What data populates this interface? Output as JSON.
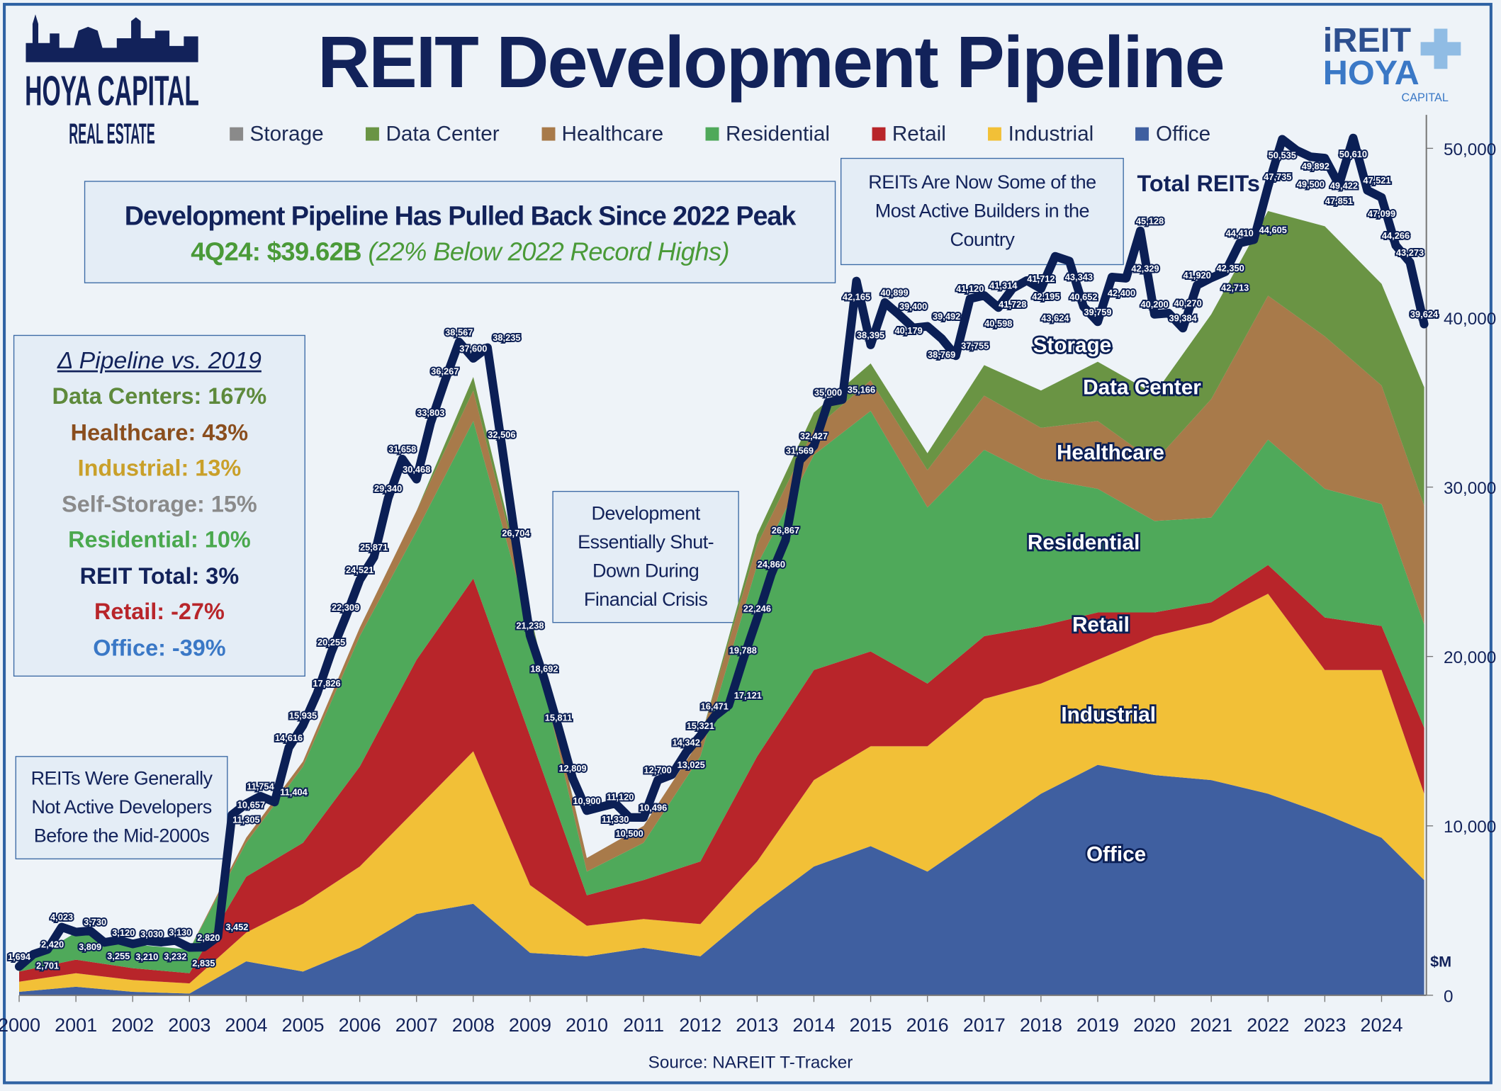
{
  "header": {
    "title": "REIT Development Pipeline",
    "logo_left": {
      "line1": "HOYA CAPITAL",
      "line2": "REAL ESTATE"
    },
    "logo_right": {
      "line1": "iREIT",
      "line2": "HOYA",
      "line3": "CAPITAL"
    }
  },
  "headline": {
    "line1": "Development Pipeline Has Pulled Back Since 2022 Peak",
    "value": "4Q24: $39.62B",
    "note": "(22% Below 2022 Record Highs)"
  },
  "annotations": {
    "builders": "REITs Are Now Some of the Most Active Builders in the Country",
    "crisis": "Development Essentially Shut-Down During Financial Crisis",
    "early": "REITs Were Generally Not Active Developers Before the Mid-2000s"
  },
  "delta_box": {
    "heading": "Δ Pipeline vs. 2019",
    "rows": [
      {
        "label": "Data Centers: 167%",
        "color": "#5e8a3c"
      },
      {
        "label": "Healthcare: 43%",
        "color": "#8a4e1e"
      },
      {
        "label": "Industrial: 13%",
        "color": "#c9a02a"
      },
      {
        "label": "Self-Storage: 15%",
        "color": "#8a8a8a"
      },
      {
        "label": "Residential: 10%",
        "color": "#4aa84e"
      },
      {
        "label": "REIT Total: 3%",
        "color": "#12225a"
      },
      {
        "label": "Retail: -27%",
        "color": "#b8252a"
      },
      {
        "label": "Office: -39%",
        "color": "#3a78c6"
      }
    ]
  },
  "source": "Source: NAREIT T-Tracker",
  "chart_data": {
    "type": "area",
    "stacked": true,
    "ylabel": "$M",
    "ylim": [
      0,
      52000
    ],
    "yticks": [
      0,
      10000,
      20000,
      30000,
      40000,
      50000
    ],
    "ytick_labels": [
      "0",
      "10,000",
      "20,000",
      "30,000",
      "40,000",
      "50,000"
    ],
    "xlim": [
      2000,
      2024.75
    ],
    "xticks": [
      "2000",
      "2001",
      "2002",
      "2003",
      "2004",
      "2005",
      "2006",
      "2007",
      "2008",
      "2009",
      "2010",
      "2011",
      "2012",
      "2013",
      "2014",
      "2015",
      "2016",
      "2017",
      "2018",
      "2019",
      "2020",
      "2021",
      "2022",
      "2023",
      "2024"
    ],
    "legend": {
      "position": "top",
      "entries": [
        "Storage",
        "Data Center",
        "Healthcare",
        "Residential",
        "Retail",
        "Industrial",
        "Office"
      ]
    },
    "colors": {
      "Storage": "#8a8a8a",
      "Data Center": "#6a9444",
      "Healthcare": "#a87a4a",
      "Residential": "#4fa95a",
      "Retail": "#b8252a",
      "Industrial": "#f2c037",
      "Office": "#3f5fa0",
      "Total REITs": "#0b1f55"
    },
    "area_labels": [
      "Storage",
      "Data Center",
      "Healthcare",
      "Residential",
      "Retail",
      "Industrial",
      "Office"
    ],
    "sector_x": [
      2000,
      2001,
      2002,
      2003,
      2004,
      2005,
      2006,
      2007,
      2008,
      2009,
      2010,
      2011,
      2012,
      2013,
      2014,
      2015,
      2016,
      2017,
      2018,
      2019,
      2020,
      2021,
      2022,
      2023,
      2024,
      2024.75
    ],
    "series": [
      {
        "name": "Office",
        "values": [
          200,
          500,
          200,
          100,
          2000,
          1400,
          2800,
          4800,
          5400,
          2500,
          2300,
          2800,
          2300,
          5100,
          7600,
          8800,
          7300,
          9600,
          11900,
          13600,
          13000,
          12700,
          11900,
          10700,
          9300,
          6800
        ]
      },
      {
        "name": "Industrial",
        "values": [
          600,
          800,
          700,
          600,
          1700,
          4000,
          4800,
          6200,
          9000,
          4000,
          1800,
          1700,
          1900,
          2800,
          5100,
          5900,
          7400,
          7900,
          6500,
          6200,
          8200,
          9300,
          11800,
          8500,
          9900,
          5100
        ]
      },
      {
        "name": "Retail",
        "values": [
          600,
          800,
          700,
          600,
          3300,
          3600,
          5900,
          8800,
          10200,
          8800,
          1800,
          2300,
          3700,
          6200,
          6500,
          5600,
          3700,
          3700,
          3400,
          2800,
          1400,
          1200,
          1700,
          3100,
          2600,
          3900
        ]
      },
      {
        "name": "Residential",
        "values": [
          300,
          1600,
          1400,
          1400,
          2000,
          4500,
          7700,
          7600,
          9300,
          6500,
          1400,
          2200,
          6200,
          11300,
          12700,
          14200,
          10400,
          11000,
          8700,
          7300,
          5400,
          5000,
          7400,
          7600,
          7200,
          6100
        ]
      },
      {
        "name": "Healthcare",
        "values": [
          0,
          0,
          0,
          0,
          300,
          300,
          500,
          1200,
          1800,
          600,
          800,
          1000,
          1000,
          1200,
          1500,
          1800,
          2200,
          3200,
          3000,
          4000,
          3500,
          7000,
          8500,
          9000,
          7000,
          7000
        ]
      },
      {
        "name": "Data Center",
        "values": [
          0,
          0,
          0,
          0,
          0,
          0,
          0,
          0,
          800,
          200,
          0,
          0,
          0,
          600,
          1000,
          1000,
          1000,
          1800,
          2200,
          3500,
          4000,
          5000,
          5000,
          6500,
          6000,
          7000
        ]
      }
    ],
    "total": {
      "name": "Total REITs",
      "start": "2000Q1",
      "frequency": "quarterly",
      "values": [
        1694,
        2420,
        2701,
        4023,
        3730,
        3809,
        3120,
        3255,
        3030,
        3210,
        3130,
        3232,
        2820,
        2835,
        3452,
        10657,
        11305,
        11754,
        11404,
        14616,
        15935,
        17826,
        20255,
        22309,
        24521,
        25871,
        29340,
        31658,
        30468,
        33803,
        36267,
        38567,
        37600,
        38235,
        32506,
        26704,
        21238,
        18692,
        15811,
        12809,
        10900,
        11120,
        11330,
        10500,
        10496,
        12700,
        13025,
        14342,
        15321,
        16471,
        17121,
        19788,
        22246,
        24860,
        26867,
        31569,
        32427,
        35000,
        35166,
        42165,
        38395,
        40899,
        40179,
        39400,
        39492,
        38769,
        37755,
        41120,
        41314,
        40598,
        41728,
        42195,
        41712,
        43624,
        43343,
        40652,
        39759,
        42400,
        42329,
        45128,
        40200,
        40270,
        39384,
        41920,
        42350,
        42713,
        44410,
        44605,
        47735,
        50535,
        49892,
        49500,
        49422,
        47851,
        50610,
        47521,
        47099,
        44266,
        43273,
        39624
      ]
    }
  }
}
